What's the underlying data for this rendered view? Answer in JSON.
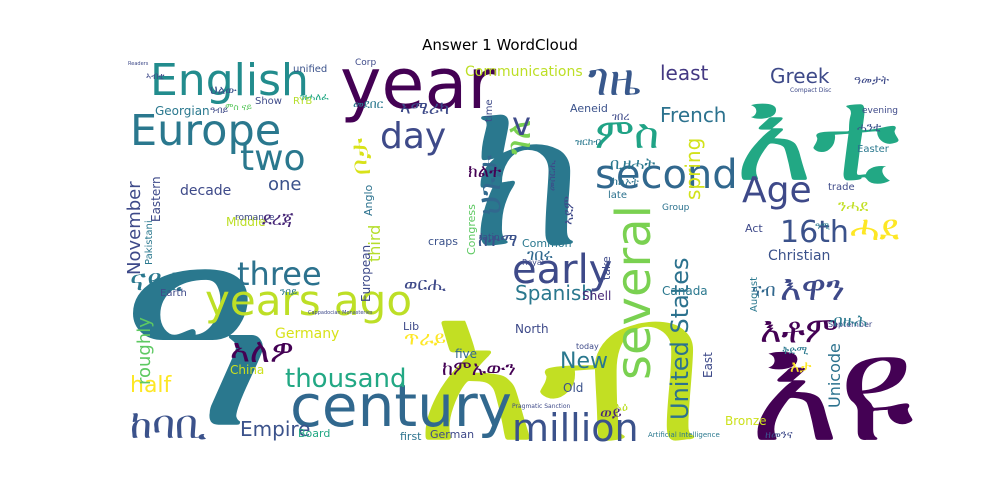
{
  "chart_data": {
    "type": "wordcloud",
    "title": "Answer 1 WordCloud",
    "colormap": "viridis",
    "words": [
      {
        "text": "ዓ",
        "weight": 1.0,
        "color": "#2a788e"
      },
      {
        "text": "ክ",
        "weight": 0.95,
        "color": "#2a788e"
      },
      {
        "text": "አብ",
        "weight": 0.9,
        "color": "#c2df23"
      },
      {
        "text": "እዩ",
        "weight": 0.72,
        "color": "#440154"
      },
      {
        "text": "እቲ",
        "weight": 0.6,
        "color": "#22a884"
      },
      {
        "text": "year",
        "weight": 0.5,
        "color": "#440154"
      },
      {
        "text": "century",
        "weight": 0.45,
        "color": "#31688e"
      },
      {
        "text": "several",
        "weight": 0.42,
        "color": "#7ad151"
      },
      {
        "text": "English",
        "weight": 0.36,
        "color": "#228c8d"
      },
      {
        "text": "Europe",
        "weight": 0.34,
        "color": "#2a788e"
      },
      {
        "text": "years ago",
        "weight": 0.33,
        "color": "#bddf26"
      },
      {
        "text": "ገዜ",
        "weight": 0.32,
        "color": "#38588c"
      },
      {
        "text": "ምስ",
        "weight": 0.3,
        "color": "#20a386"
      },
      {
        "text": "second",
        "weight": 0.3,
        "color": "#31688e"
      },
      {
        "text": "early",
        "weight": 0.3,
        "color": "#3e4a89"
      },
      {
        "text": "million",
        "weight": 0.28,
        "color": "#3b528b"
      },
      {
        "text": "Age",
        "weight": 0.28,
        "color": "#3e4989"
      },
      {
        "text": "day",
        "weight": 0.27,
        "color": "#3e4a89"
      },
      {
        "text": "two",
        "weight": 0.27,
        "color": "#2a788e"
      },
      {
        "text": "three",
        "weight": 0.26,
        "color": "#2c728e"
      },
      {
        "text": "16th",
        "weight": 0.25,
        "color": "#3b528b"
      },
      {
        "text": "ሓደ",
        "weight": 0.25,
        "color": "#fde725"
      },
      {
        "text": "ከባቢ",
        "weight": 0.24,
        "color": "#3b528b"
      },
      {
        "text": "thousand",
        "weight": 0.23,
        "color": "#22a884"
      },
      {
        "text": "United States",
        "weight": 0.22,
        "color": "#2c728e"
      },
      {
        "text": "እዋን",
        "weight": 0.22,
        "color": "#3e4989"
      },
      {
        "text": "እቶም",
        "weight": 0.21,
        "color": "#440154"
      },
      {
        "text": "ኣለዎ",
        "weight": 0.21,
        "color": "#440154"
      },
      {
        "text": "ገለ",
        "weight": 0.2,
        "color": "#7ad151"
      },
      {
        "text": "ናይቲ",
        "weight": 0.19,
        "color": "#2a788e"
      },
      {
        "text": "ህጉታ",
        "weight": 0.19,
        "color": "#31688e"
      },
      {
        "text": "ቦታ",
        "weight": 0.18,
        "color": "#d8e219"
      },
      {
        "text": "v",
        "weight": 0.18,
        "color": "#3e4a89"
      },
      {
        "text": "New",
        "weight": 0.17,
        "color": "#2a788e"
      },
      {
        "text": "Empire",
        "weight": 0.17,
        "color": "#3b528b"
      },
      {
        "text": "Greek",
        "weight": 0.16,
        "color": "#3e4a89"
      },
      {
        "text": "French",
        "weight": 0.16,
        "color": "#2c728e"
      },
      {
        "text": "least",
        "weight": 0.16,
        "color": "#443983"
      },
      {
        "text": "Spanish",
        "weight": 0.15,
        "color": "#2a788e"
      },
      {
        "text": "one",
        "weight": 0.15,
        "color": "#3b528b"
      },
      {
        "text": "spring",
        "weight": 0.14,
        "color": "#d2e21b"
      },
      {
        "text": "half",
        "weight": 0.14,
        "color": "#fde725"
      },
      {
        "text": "November",
        "weight": 0.14,
        "color": "#3e4a89"
      },
      {
        "text": "Unicode",
        "weight": 0.13,
        "color": "#2c728e"
      },
      {
        "text": "roughly",
        "weight": 0.13,
        "color": "#5ec962"
      },
      {
        "text": "Christian",
        "weight": 0.12,
        "color": "#3b528b"
      },
      {
        "text": "Communications",
        "weight": 0.12,
        "color": "#bddf26"
      },
      {
        "text": "Germany",
        "weight": 0.11,
        "color": "#d8e219"
      },
      {
        "text": "third",
        "weight": 0.11,
        "color": "#b5de2b"
      },
      {
        "text": "decade",
        "weight": 0.11,
        "color": "#3e4a89"
      },
      {
        "text": "Georgian",
        "weight": 0.1,
        "color": "#2a788e"
      },
      {
        "text": "European",
        "weight": 0.1,
        "color": "#3e4a89"
      },
      {
        "text": "Eastern",
        "weight": 0.1,
        "color": "#3e4a89"
      },
      {
        "text": "Canada",
        "weight": 0.1,
        "color": "#2a788e"
      },
      {
        "text": "East",
        "weight": 0.1,
        "color": "#3e4a89"
      },
      {
        "text": "North",
        "weight": 0.1,
        "color": "#3e4a89"
      },
      {
        "text": "Shell",
        "weight": 0.1,
        "color": "#482878"
      },
      {
        "text": "German",
        "weight": 0.1,
        "color": "#3e4989"
      },
      {
        "text": "Bronze",
        "weight": 0.1,
        "color": "#cde11d"
      },
      {
        "text": "August",
        "weight": 0.1,
        "color": "#2a788e"
      },
      {
        "text": "five",
        "weight": 0.1,
        "color": "#31688e"
      },
      {
        "text": "Old",
        "weight": 0.1,
        "color": "#3b528b"
      },
      {
        "text": "Middle",
        "weight": 0.09,
        "color": "#bddf26"
      },
      {
        "text": "Board",
        "weight": 0.09,
        "color": "#22a884"
      },
      {
        "text": "Easter",
        "weight": 0.09,
        "color": "#2a788e"
      },
      {
        "text": "Act",
        "weight": 0.09,
        "color": "#3e4989"
      },
      {
        "text": "late",
        "weight": 0.09,
        "color": "#2c728e"
      },
      {
        "text": "first",
        "weight": 0.09,
        "color": "#2c728e"
      },
      {
        "text": "Lib",
        "weight": 0.09,
        "color": "#3e4a89"
      },
      {
        "text": "take",
        "weight": 0.09,
        "color": "#3e4a89"
      },
      {
        "text": "China",
        "weight": 0.09,
        "color": "#cde11d"
      },
      {
        "text": "Anglo",
        "weight": 0.09,
        "color": "#2c728e"
      },
      {
        "text": "Show",
        "weight": 0.08,
        "color": "#3e4a89"
      },
      {
        "text": "unified",
        "weight": 0.08,
        "color": "#3b528b"
      },
      {
        "text": "Common",
        "weight": 0.08,
        "color": "#2a788e"
      },
      {
        "text": "Aeneid",
        "weight": 0.08,
        "color": "#3b528b"
      },
      {
        "text": "Congress",
        "weight": 0.08,
        "color": "#5ec962"
      },
      {
        "text": "Pakistani",
        "weight": 0.08,
        "color": "#2a788e"
      },
      {
        "text": "trade",
        "weight": 0.08,
        "color": "#3e4a89"
      },
      {
        "text": "September",
        "weight": 0.08,
        "color": "#3e4989"
      },
      {
        "text": "Earth",
        "weight": 0.08,
        "color": "#3e4a89"
      },
      {
        "text": "time",
        "weight": 0.08,
        "color": "#3e4a89"
      },
      {
        "text": "craps",
        "weight": 0.08,
        "color": "#3b528b"
      },
      {
        "text": "latin",
        "weight": 0.08,
        "color": "#3e4a89"
      },
      {
        "text": "Group",
        "weight": 0.07,
        "color": "#2c728e"
      },
      {
        "text": "RYB",
        "weight": 0.07,
        "color": "#b5de2b"
      },
      {
        "text": "romance",
        "weight": 0.07,
        "color": "#3e4a89"
      },
      {
        "text": "today",
        "weight": 0.07,
        "color": "#3e4a89"
      },
      {
        "text": "Royal",
        "weight": 0.06,
        "color": "#3e4a89"
      },
      {
        "text": "evening",
        "weight": 0.06,
        "color": "#3e4a89"
      },
      {
        "text": "Artificial Intelligence",
        "weight": 0.05,
        "color": "#2a788e"
      },
      {
        "text": "Corp",
        "weight": 0.05,
        "color": "#3e4a89"
      },
      {
        "text": "Compact Disc",
        "weight": 0.04,
        "color": "#3e4a89"
      },
      {
        "text": "Pragmatic Sanction",
        "weight": 0.04,
        "color": "#3e4a89"
      },
      {
        "text": "Cappadocian Monasteries",
        "weight": 0.03,
        "color": "#3e4a89"
      },
      {
        "text": "Readers",
        "weight": 0.03,
        "color": "#3e4a89"
      },
      {
        "text": "ኣሜሪካ",
        "weight": 0.12,
        "color": "#3e4a89"
      },
      {
        "text": "መደበር",
        "weight": 0.1,
        "color": "#2a788e"
      },
      {
        "text": "ደረጃ",
        "weight": 0.13,
        "color": "#482878"
      },
      {
        "text": "ክልተ",
        "weight": 0.13,
        "color": "#440154"
      },
      {
        "text": "ቢዘሓት",
        "weight": 0.12,
        "color": "#2a788e"
      },
      {
        "text": "ከተማ",
        "weight": 0.13,
        "color": "#3b528b"
      },
      {
        "text": "ገበሩ",
        "weight": 0.12,
        "color": "#31688e"
      },
      {
        "text": "ወርሒ",
        "weight": 0.12,
        "color": "#3e4989"
      },
      {
        "text": "ናብ",
        "weight": 0.12,
        "color": "#31688e"
      },
      {
        "text": "ብዙሕ",
        "weight": 0.12,
        "color": "#2a788e"
      },
      {
        "text": "ከምኡውን",
        "weight": 0.14,
        "color": "#440154"
      },
      {
        "text": "ጥራይ",
        "weight": 0.12,
        "color": "#fde725"
      },
      {
        "text": "ኣደም",
        "weight": 0.11,
        "color": "#3e4989"
      },
      {
        "text": "ዓመታት",
        "weight": 0.09,
        "color": "#3e4a89"
      },
      {
        "text": "ዝርከብ",
        "weight": 0.1,
        "color": "#2a788e"
      },
      {
        "text": "ንሓደ",
        "weight": 0.11,
        "color": "#c2df23"
      },
      {
        "text": "ሓንቲ",
        "weight": 0.09,
        "color": "#3b528b"
      },
      {
        "text": "ካልኦት",
        "weight": 0.09,
        "color": "#2c728e"
      },
      {
        "text": "ህልው",
        "weight": 0.09,
        "color": "#3b528b"
      },
      {
        "text": "ምስ ናይ",
        "weight": 0.09,
        "color": "#5ec962"
      },
      {
        "text": "ንበይ",
        "weight": 0.08,
        "color": "#2a788e"
      },
      {
        "text": "ገበረ",
        "weight": 0.08,
        "color": "#3e4a89"
      },
      {
        "text": "ዝሓለፈ",
        "weight": 0.08,
        "color": "#22a884"
      },
      {
        "text": "መስርሒ",
        "weight": 0.08,
        "color": "#3e4a89"
      },
      {
        "text": "ቅድሚ",
        "weight": 0.08,
        "color": "#2a788e"
      },
      {
        "text": "ኣዕ",
        "weight": 0.08,
        "color": "#bddf26"
      },
      {
        "text": "እታ",
        "weight": 0.11,
        "color": "#fde725"
      },
      {
        "text": "ወይ",
        "weight": 0.11,
        "color": "#482878"
      },
      {
        "text": "ዘመንና",
        "weight": 0.08,
        "color": "#3e4a89"
      },
      {
        "text": "ዓሚ",
        "weight": 0.08,
        "color": "#2a788e"
      },
      {
        "text": "ኣብቲ",
        "weight": 0.08,
        "color": "#3e4a89"
      },
      {
        "text": "ዓብይ",
        "weight": 0.07,
        "color": "#3e4a89"
      }
    ]
  }
}
